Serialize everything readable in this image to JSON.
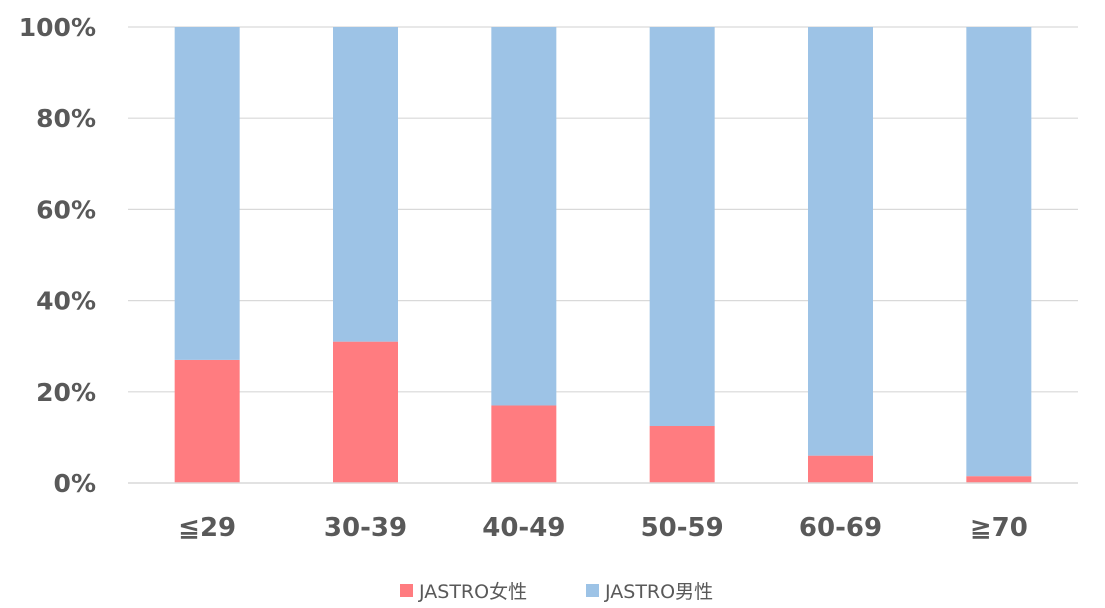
{
  "chart_data": {
    "type": "bar",
    "stacked": true,
    "categories": [
      "≦29",
      "30-39",
      "40-49",
      "50-59",
      "60-69",
      "≧70"
    ],
    "series": [
      {
        "name": "JASTRO女性",
        "values": [
          27,
          31,
          17,
          12.5,
          6,
          1.5
        ],
        "color": "#ff7c80"
      },
      {
        "name": "JASTRO男性",
        "values": [
          73,
          69,
          83,
          87.5,
          94,
          98.5
        ],
        "color": "#9dc3e6"
      }
    ],
    "title": "",
    "xlabel": "",
    "ylabel": "",
    "ylim": [
      0,
      100
    ],
    "yticks": [
      "0%",
      "20%",
      "40%",
      "60%",
      "80%",
      "100%"
    ],
    "grid": true,
    "legend": "bottom-center"
  }
}
